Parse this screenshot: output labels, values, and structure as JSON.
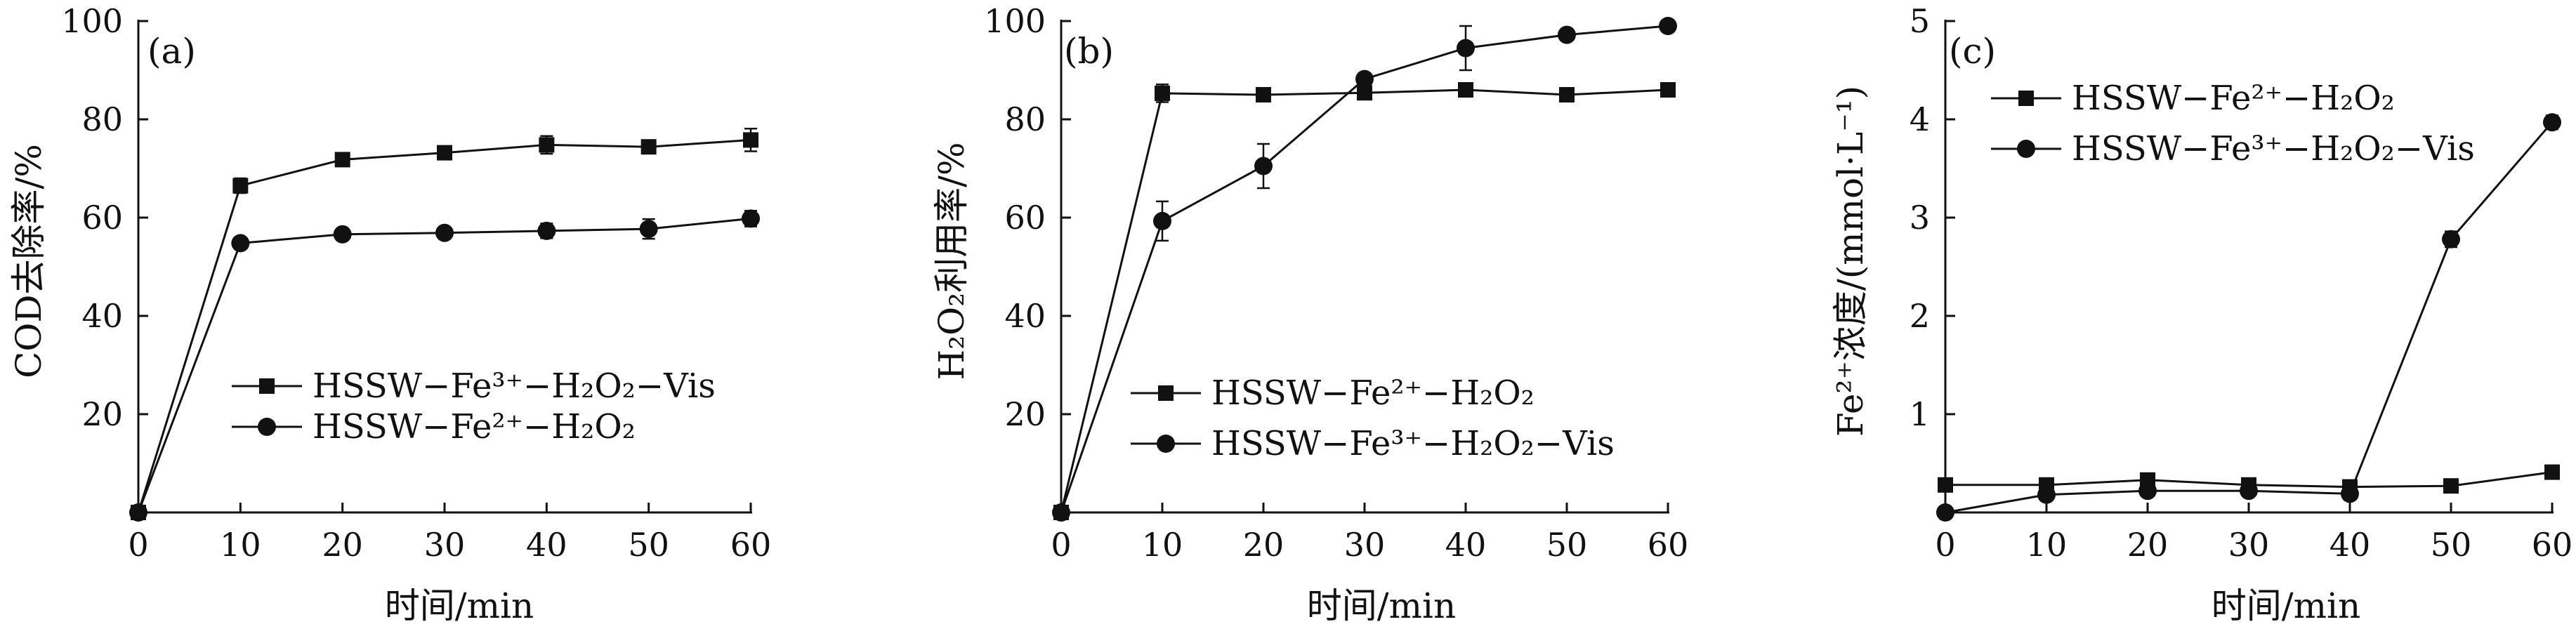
{
  "chart_data": [
    {
      "id": "a",
      "type": "line",
      "panel_label": "(a)",
      "xlabel": "时间/min",
      "ylabel": "COD去除率/%",
      "xlim": [
        0,
        60
      ],
      "ylim": [
        0,
        100
      ],
      "xticks": [
        0,
        10,
        20,
        30,
        40,
        50,
        60
      ],
      "yticks": [
        20,
        40,
        60,
        80,
        100
      ],
      "legend_position": "center-right",
      "series": [
        {
          "name": "HSSW−Fe³⁺−H₂O₂−Vis",
          "marker": "square",
          "x": [
            0,
            10,
            20,
            30,
            40,
            50,
            60
          ],
          "y": [
            0,
            66.5,
            71.8,
            73.2,
            74.8,
            74.4,
            75.8
          ],
          "err": [
            0,
            1.5,
            1.2,
            1.0,
            1.8,
            1.0,
            2.3
          ]
        },
        {
          "name": "HSSW−Fe²⁺−H₂O₂",
          "marker": "circle",
          "x": [
            0,
            10,
            20,
            30,
            40,
            50,
            60
          ],
          "y": [
            0,
            54.8,
            56.6,
            56.9,
            57.3,
            57.7,
            59.8
          ],
          "err": [
            0,
            0.8,
            0.8,
            0.8,
            1.5,
            2.0,
            1.6
          ]
        }
      ]
    },
    {
      "id": "b",
      "type": "line",
      "panel_label": "(b)",
      "xlabel": "时间/min",
      "ylabel": "H₂O₂利用率/%",
      "xlim": [
        0,
        60
      ],
      "ylim": [
        0,
        100
      ],
      "xticks": [
        0,
        10,
        20,
        30,
        40,
        50,
        60
      ],
      "yticks": [
        20,
        40,
        60,
        80,
        100
      ],
      "legend_position": "center-right",
      "series": [
        {
          "name": "HSSW−Fe²⁺−H₂O₂",
          "marker": "square",
          "x": [
            0,
            10,
            20,
            30,
            40,
            50,
            60
          ],
          "y": [
            0,
            85.3,
            85.0,
            85.4,
            86.0,
            85.0,
            86.0
          ],
          "err": [
            0,
            1.8,
            0.8,
            0.8,
            0.8,
            0.8,
            0.8
          ]
        },
        {
          "name": "HSSW−Fe³⁺−H₂O₂−Vis",
          "marker": "circle",
          "x": [
            0,
            10,
            20,
            30,
            40,
            50,
            60
          ],
          "y": [
            0,
            59.3,
            70.5,
            88.2,
            94.5,
            97.2,
            99.0
          ],
          "err": [
            0,
            4.0,
            4.5,
            1.0,
            4.5,
            1.0,
            0.8
          ]
        }
      ]
    },
    {
      "id": "c",
      "type": "line",
      "panel_label": "(c)",
      "xlabel": "时间/min",
      "ylabel": "Fe²⁺浓度/(mmol·L⁻¹)",
      "xlim": [
        0,
        60
      ],
      "ylim": [
        0,
        5
      ],
      "xticks": [
        0,
        10,
        20,
        30,
        40,
        50,
        60
      ],
      "yticks": [
        1,
        2,
        3,
        4,
        5
      ],
      "legend_position": "top-left",
      "series": [
        {
          "name": "HSSW−Fe²⁺−H₂O₂",
          "marker": "square",
          "x": [
            0,
            10,
            20,
            30,
            40,
            50,
            60
          ],
          "y": [
            0.28,
            0.28,
            0.33,
            0.28,
            0.26,
            0.27,
            0.41
          ],
          "err": [
            0,
            0.02,
            0.02,
            0.02,
            0.02,
            0.02,
            0.02
          ]
        },
        {
          "name": "HSSW−Fe³⁺−H₂O₂−Vis",
          "marker": "circle",
          "x": [
            0,
            10,
            20,
            30,
            40,
            50,
            60
          ],
          "y": [
            0.0,
            0.18,
            0.22,
            0.22,
            0.19,
            2.78,
            3.97
          ],
          "err": [
            0,
            0.02,
            0.02,
            0.02,
            0.02,
            0.08,
            0.07
          ]
        }
      ]
    }
  ]
}
